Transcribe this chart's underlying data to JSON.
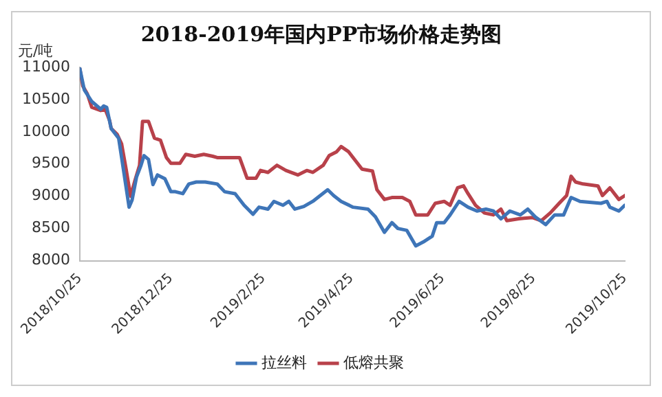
{
  "chart_data": {
    "type": "line",
    "title": "2018-2019年国内PP市场价格走势图",
    "ylabel": "元/吨",
    "legend": "bottom",
    "grid": false,
    "marker": "none",
    "line_style": "solid",
    "ylim": [
      8000,
      11000
    ],
    "yticks": [
      8000,
      8500,
      9000,
      9500,
      10000,
      10500,
      11000
    ],
    "xlim": [
      "2018-10-25",
      "2019-10-25"
    ],
    "xticks": [
      {
        "value": "2018-10-25",
        "label": "2018/10/25"
      },
      {
        "value": "2018-12-25",
        "label": "2018/12/25"
      },
      {
        "value": "2019-02-25",
        "label": "2019/2/25"
      },
      {
        "value": "2019-04-25",
        "label": "2019/4/25"
      },
      {
        "value": "2019-06-25",
        "label": "2019/6/25"
      },
      {
        "value": "2019-08-25",
        "label": "2019/8/25"
      },
      {
        "value": "2019-10-25",
        "label": "2019/10/25"
      }
    ],
    "series": [
      {
        "name": "拉丝料",
        "color": "#3e75b8",
        "x": [
          "2018-10-25",
          "2018-10-28",
          "2018-11-02",
          "2018-11-08",
          "2018-11-10",
          "2018-11-12",
          "2018-11-15",
          "2018-11-20",
          "2018-11-22",
          "2018-11-27",
          "2018-11-29",
          "2018-12-02",
          "2018-12-05",
          "2018-12-07",
          "2018-12-10",
          "2018-12-13",
          "2018-12-16",
          "2018-12-21",
          "2018-12-25",
          "2018-12-28",
          "2019-01-02",
          "2019-01-06",
          "2019-01-11",
          "2019-01-17",
          "2019-01-25",
          "2019-01-30",
          "2019-02-06",
          "2019-02-12",
          "2019-02-18",
          "2019-02-22",
          "2019-02-28",
          "2019-03-04",
          "2019-03-10",
          "2019-03-14",
          "2019-03-18",
          "2019-03-24",
          "2019-03-30",
          "2019-04-04",
          "2019-04-09",
          "2019-04-13",
          "2019-04-18",
          "2019-04-26",
          "2019-05-06",
          "2019-05-11",
          "2019-05-17",
          "2019-05-22",
          "2019-05-26",
          "2019-06-01",
          "2019-06-07",
          "2019-06-12",
          "2019-06-18",
          "2019-06-21",
          "2019-06-26",
          "2019-06-30",
          "2019-07-06",
          "2019-07-12",
          "2019-07-18",
          "2019-07-24",
          "2019-07-29",
          "2019-08-03",
          "2019-08-09",
          "2019-08-16",
          "2019-08-21",
          "2019-08-26",
          "2019-09-02",
          "2019-09-08",
          "2019-09-14",
          "2019-09-19",
          "2019-09-25",
          "2019-10-09",
          "2019-10-13",
          "2019-10-15",
          "2019-10-21",
          "2019-10-25"
        ],
        "values": [
          10980,
          10650,
          10470,
          10350,
          10400,
          10380,
          10050,
          9900,
          9600,
          8830,
          8940,
          9300,
          9480,
          9630,
          9570,
          9180,
          9330,
          9270,
          9070,
          9070,
          9040,
          9190,
          9220,
          9220,
          9190,
          9070,
          9040,
          8860,
          8720,
          8830,
          8800,
          8920,
          8860,
          8920,
          8800,
          8840,
          8920,
          9010,
          9100,
          9010,
          8920,
          8830,
          8800,
          8680,
          8440,
          8590,
          8500,
          8470,
          8230,
          8290,
          8380,
          8590,
          8590,
          8710,
          8920,
          8830,
          8770,
          8800,
          8770,
          8650,
          8770,
          8710,
          8800,
          8680,
          8560,
          8710,
          8710,
          8980,
          8920,
          8890,
          8920,
          8830,
          8770,
          8860
        ]
      },
      {
        "name": "低熔共聚",
        "color": "#b8414a",
        "x": [
          "2018-10-25",
          "2018-10-27",
          "2018-10-30",
          "2018-11-02",
          "2018-11-08",
          "2018-11-11",
          "2018-11-14",
          "2018-11-15",
          "2018-11-19",
          "2018-11-22",
          "2018-11-25",
          "2018-11-28",
          "2018-12-01",
          "2018-12-04",
          "2018-12-06",
          "2018-12-10",
          "2018-12-14",
          "2018-12-18",
          "2018-12-22",
          "2018-12-25",
          "2018-12-31",
          "2019-01-04",
          "2019-01-10",
          "2019-01-16",
          "2019-01-22",
          "2019-01-25",
          "2019-02-09",
          "2019-02-14",
          "2019-02-20",
          "2019-02-23",
          "2019-02-28",
          "2019-03-06",
          "2019-03-12",
          "2019-03-20",
          "2019-03-26",
          "2019-03-30",
          "2019-04-06",
          "2019-04-10",
          "2019-04-15",
          "2019-04-18",
          "2019-04-23",
          "2019-04-27",
          "2019-05-02",
          "2019-05-09",
          "2019-05-12",
          "2019-05-17",
          "2019-05-22",
          "2019-05-29",
          "2019-06-03",
          "2019-06-07",
          "2019-06-15",
          "2019-06-20",
          "2019-06-26",
          "2019-06-30",
          "2019-07-05",
          "2019-07-09",
          "2019-07-12",
          "2019-07-17",
          "2019-07-23",
          "2019-07-29",
          "2019-08-03",
          "2019-08-07",
          "2019-08-15",
          "2019-08-24",
          "2019-08-30",
          "2019-09-05",
          "2019-09-11",
          "2019-09-16",
          "2019-09-19",
          "2019-09-22",
          "2019-09-27",
          "2019-10-07",
          "2019-10-10",
          "2019-10-15",
          "2019-10-21",
          "2019-10-25"
        ],
        "values": [
          10980,
          10710,
          10590,
          10380,
          10330,
          10350,
          10170,
          10050,
          9960,
          9810,
          9420,
          9000,
          9250,
          9480,
          10160,
          10160,
          9900,
          9870,
          9600,
          9510,
          9510,
          9650,
          9620,
          9650,
          9620,
          9600,
          9600,
          9280,
          9280,
          9400,
          9370,
          9480,
          9400,
          9330,
          9400,
          9370,
          9480,
          9630,
          9690,
          9770,
          9690,
          9570,
          9420,
          9390,
          9100,
          8950,
          8980,
          8980,
          8920,
          8710,
          8710,
          8890,
          8920,
          8860,
          9130,
          9160,
          9040,
          8860,
          8740,
          8710,
          8800,
          8620,
          8650,
          8670,
          8620,
          8740,
          8890,
          9010,
          9310,
          9220,
          9190,
          9160,
          9010,
          9130,
          8950,
          9010
        ]
      }
    ]
  }
}
